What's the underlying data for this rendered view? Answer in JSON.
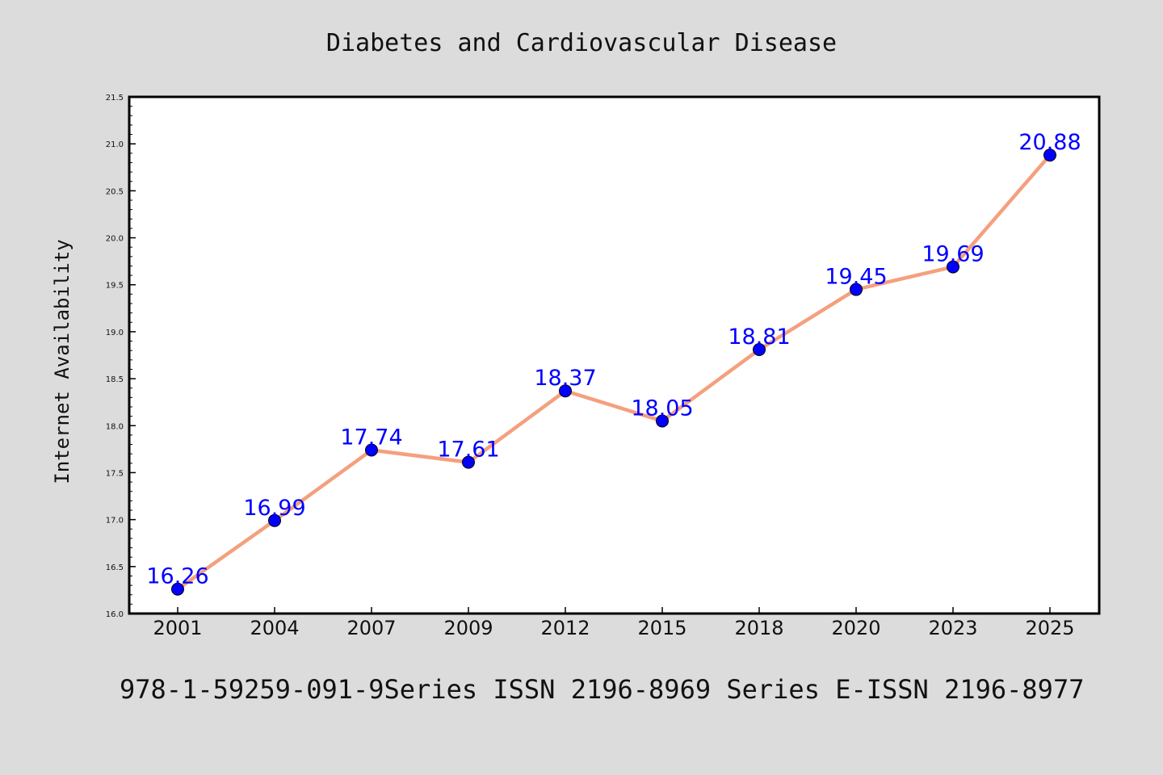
{
  "colors": {
    "background": "#dcdcdc",
    "plot_background": "#ffffff",
    "line": "#f4a07e",
    "marker": "#0000ff",
    "data_label": "#0000ff"
  },
  "footer": "978-1-59259-091-9Series ISSN 2196-8969 Series E-ISSN 2196-8977",
  "chart_data": {
    "type": "line",
    "title": "Diabetes and Cardiovascular Disease",
    "xlabel": "",
    "ylabel": "Internet Availability",
    "categories": [
      "2001",
      "2004",
      "2007",
      "2009",
      "2012",
      "2015",
      "2018",
      "2020",
      "2023",
      "2025"
    ],
    "series": [
      {
        "values": [
          16.26,
          16.99,
          17.74,
          17.61,
          18.37,
          18.05,
          18.81,
          19.45,
          19.69,
          20.88
        ]
      }
    ],
    "data_labels": [
      "16.26",
      "16.99",
      "17.74",
      "17.61",
      "18.37",
      "18.05",
      "18.81",
      "19.45",
      "19.69",
      "20.88"
    ],
    "ylim": [
      16.0,
      21.5
    ],
    "yticks": [
      "16.0",
      "16.5",
      "17.0",
      "17.5",
      "18.0",
      "18.5",
      "19.0",
      "19.5",
      "20.0",
      "20.5",
      "21.0",
      "21.5"
    ],
    "grid": false,
    "legend": "none"
  }
}
